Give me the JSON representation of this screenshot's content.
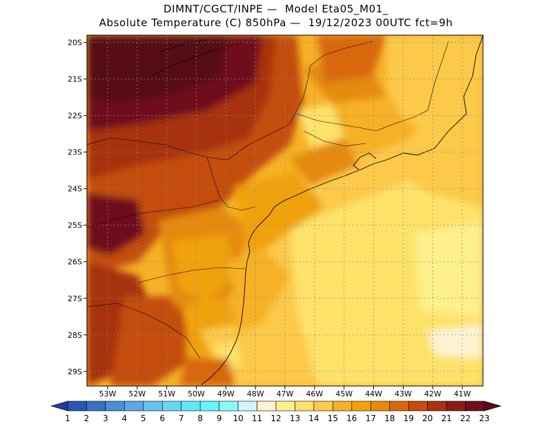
{
  "header": {
    "line1": "DIMNT/CGCT/INPE —  Model Eta05_M01_",
    "line2": "Absolute Temperature (C) 850hPa —  19/12/2023 00UTC fct=9h"
  },
  "map": {
    "lat_labels": [
      "20S",
      "21S",
      "22S",
      "23S",
      "24S",
      "25S",
      "26S",
      "27S",
      "28S",
      "29S"
    ],
    "lon_labels": [
      "53W",
      "52W",
      "51W",
      "50W",
      "49W",
      "48W",
      "47W",
      "46W",
      "45W",
      "44W",
      "43W",
      "42W",
      "41W"
    ],
    "lat_values": [
      -20,
      -21,
      -22,
      -23,
      -24,
      -25,
      -26,
      -27,
      -28,
      -29
    ],
    "lon_values": [
      -53,
      -52,
      -51,
      -50,
      -49,
      -48,
      -47,
      -46,
      -45,
      -44,
      -43,
      -42,
      -41
    ],
    "lon_range": [
      -53.7,
      -40.3
    ],
    "lat_range": [
      -29.4,
      -19.8
    ],
    "grid": "dotted"
  },
  "colorbar": {
    "labels": [
      "1",
      "2",
      "3",
      "4",
      "5",
      "6",
      "7",
      "8",
      "9",
      "10",
      "11",
      "12",
      "13",
      "14",
      "15",
      "16",
      "17",
      "18",
      "19",
      "20",
      "21",
      "22",
      "23"
    ],
    "colors": [
      "#1f3d96",
      "#2856b0",
      "#3a72c4",
      "#4a8fd6",
      "#5aa8e4",
      "#66c2ee",
      "#63d8f2",
      "#5ee8f6",
      "#66f5f8",
      "#8ef9f9",
      "#d2f4f9",
      "#fff3d2",
      "#fef08a",
      "#fde26a",
      "#fcc94a",
      "#f6b126",
      "#f0a20a",
      "#e58a0b",
      "#d9680a",
      "#c44e0a",
      "#a83310",
      "#8a1f16",
      "#6f0f1d",
      "#560a17"
    ]
  },
  "legend_colors": {
    "t12_13": "#fff3d2",
    "t13_14": "#fef08a",
    "t14_15": "#fde26a",
    "t15_16": "#fcc94a",
    "t16_17": "#f6b126",
    "t17_18": "#f0a20a",
    "t18_19": "#e58a0b",
    "t19_20": "#d9680a",
    "t20_21": "#c44e0a",
    "t21_22": "#a83310",
    "t22_23": "#6f0f1d",
    "t23_plus": "#560a17"
  }
}
